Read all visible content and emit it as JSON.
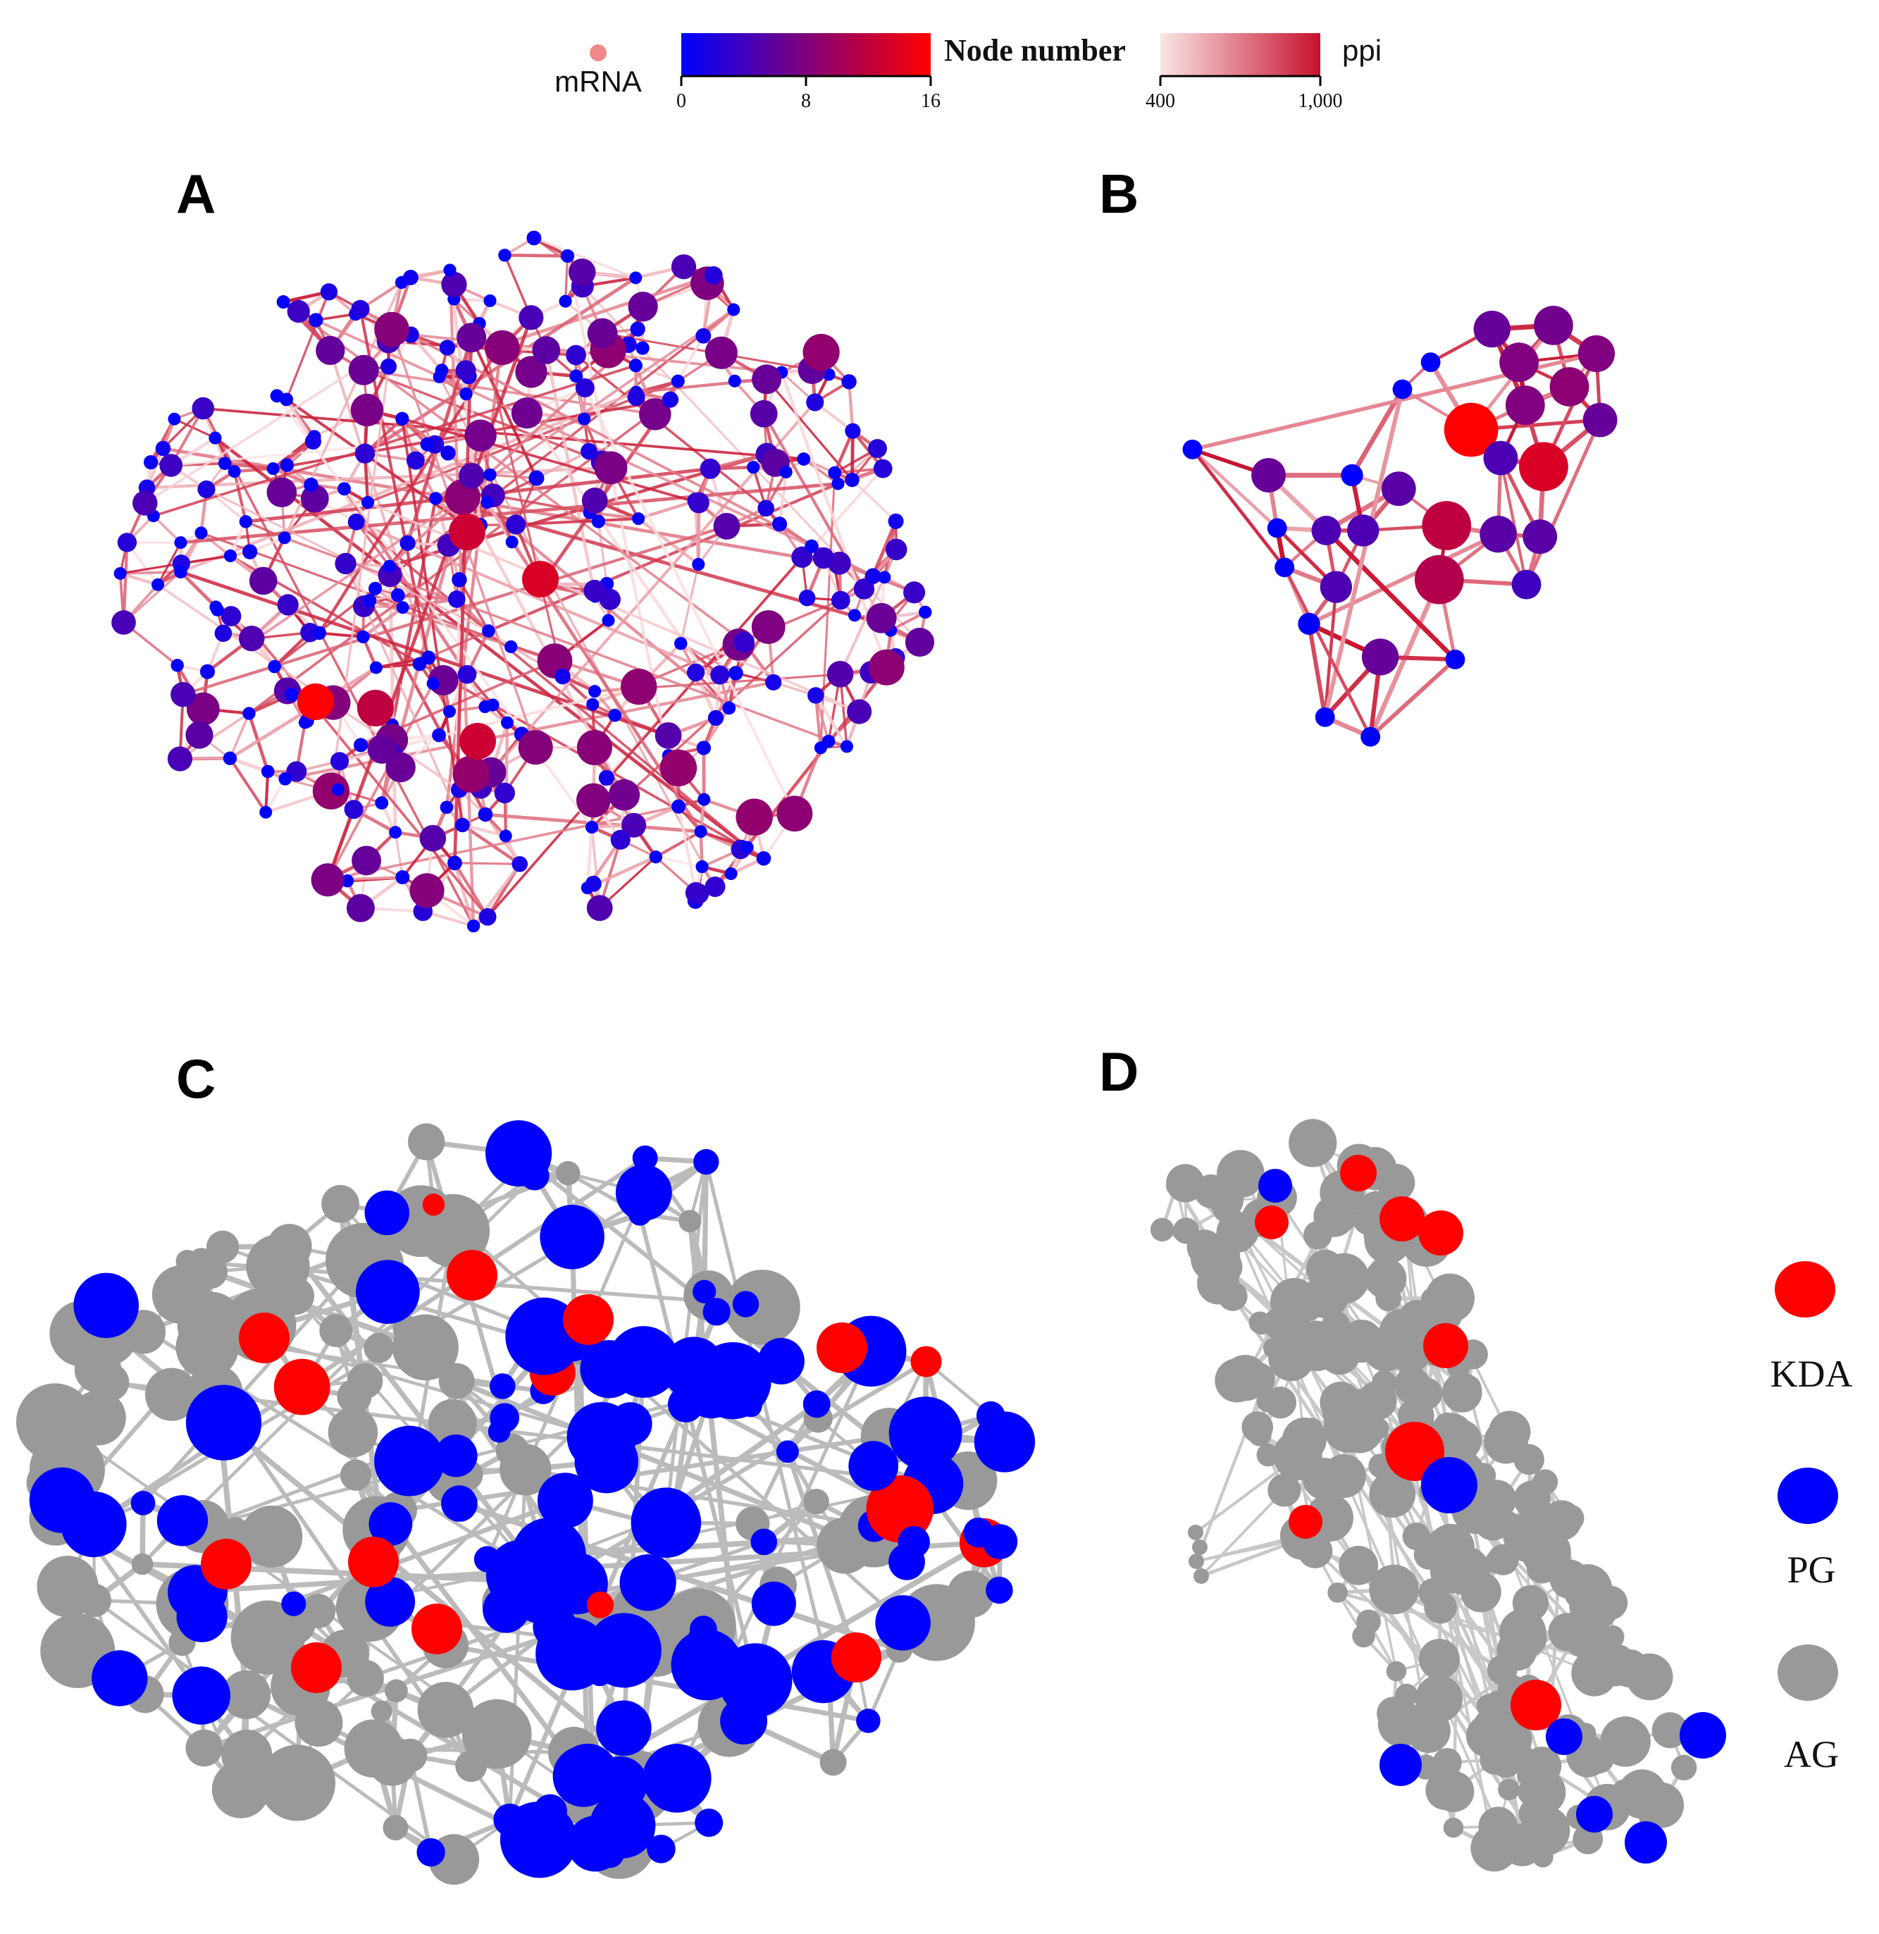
{
  "legend_top": {
    "mrna_label": "mRNA",
    "node_number_label": "Node number",
    "node_number_ticks": [
      "0",
      "8",
      "16"
    ],
    "node_number_colors": [
      "#0000ff",
      "#ff0000"
    ],
    "ppi_label": "ppi",
    "ppi_ticks": [
      "400",
      "1,000"
    ],
    "ppi_colors": [
      "#fbe3e3",
      "#c8102e"
    ],
    "mrna_color": "#f08a8a"
  },
  "panels": {
    "a": "A",
    "b": "B",
    "c": "C",
    "d": "D"
  },
  "legend_cd": {
    "kda": {
      "label": "KDA",
      "color": "#ff0000"
    },
    "pg": {
      "label": "PG",
      "color": "#0000ff"
    },
    "ag": {
      "label": "AG",
      "color": "#999999"
    }
  }
}
